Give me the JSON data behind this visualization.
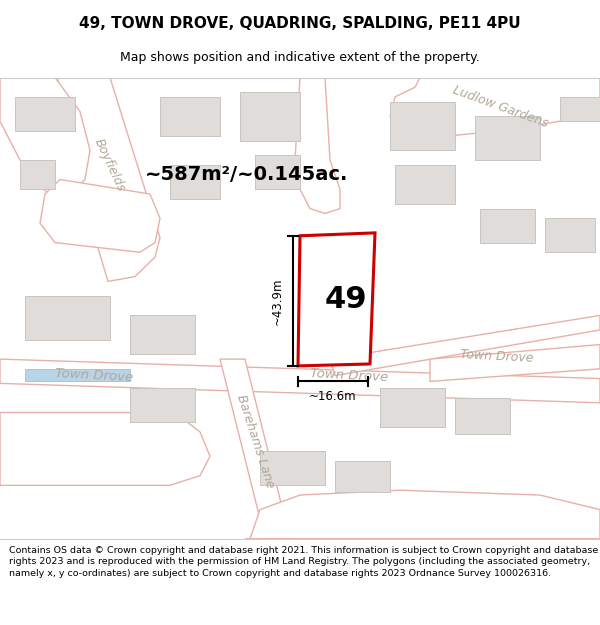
{
  "title": "49, TOWN DROVE, QUADRING, SPALDING, PE11 4PU",
  "subtitle": "Map shows position and indicative extent of the property.",
  "footer": "Contains OS data © Crown copyright and database right 2021. This information is subject to Crown copyright and database rights 2023 and is reproduced with the permission of HM Land Registry. The polygons (including the associated geometry, namely x, y co-ordinates) are subject to Crown copyright and database rights 2023 Ordnance Survey 100026316.",
  "map_bg": "#ffffff",
  "road_edge": "#e8b0a8",
  "road_fill": "#ffffff",
  "building_fill": "#e0dcda",
  "building_edge": "#c8c4c0",
  "highlight_color": "#cc0000",
  "area_text": "~587m²/~0.145ac.",
  "height_text": "~43.9m",
  "width_text": "~16.6m",
  "number_text": "49",
  "label_ludlow": "Ludlow Gardens",
  "label_boyfields": "Boyfields",
  "label_town_drove1": "Town Drove",
  "label_town_drove2": "Town Drove",
  "label_town_drove3": "Town Drove",
  "label_barehams": "Barehams Lane",
  "road_label_color": "#b0a898",
  "title_fontsize": 11,
  "subtitle_fontsize": 9,
  "footer_fontsize": 6.8
}
